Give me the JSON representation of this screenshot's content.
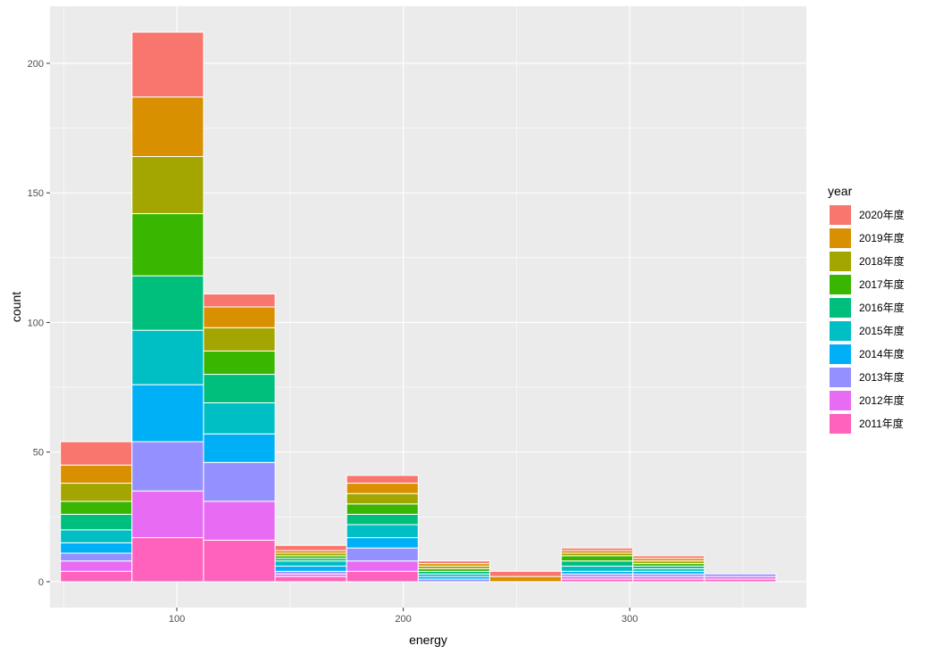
{
  "chart_data": {
    "type": "bar",
    "stacked": true,
    "xlabel": "energy",
    "ylabel": "count",
    "xlim": [
      44,
      378
    ],
    "ylim": [
      -10,
      222
    ],
    "xticks": [
      100,
      200,
      300
    ],
    "yticks": [
      0,
      50,
      100,
      150,
      200
    ],
    "x_tick_labels": [
      "100",
      "200",
      "300"
    ],
    "y_tick_labels": [
      "0",
      "50",
      "100",
      "150",
      "200"
    ],
    "grid": true,
    "legend": {
      "title": "year",
      "position": "right"
    },
    "bins": [
      {
        "x0": 48.6,
        "x1": 80.2
      },
      {
        "x0": 80.2,
        "x1": 111.8
      },
      {
        "x0": 111.8,
        "x1": 143.4
      },
      {
        "x0": 143.4,
        "x1": 175.0
      },
      {
        "x0": 175.0,
        "x1": 206.6
      },
      {
        "x0": 206.6,
        "x1": 238.2
      },
      {
        "x0": 238.2,
        "x1": 269.8
      },
      {
        "x0": 269.8,
        "x1": 301.4
      },
      {
        "x0": 301.4,
        "x1": 333.0
      },
      {
        "x0": 333.0,
        "x1": 364.6
      }
    ],
    "series": [
      {
        "name": "2020年度",
        "color": "#F8766D",
        "values": [
          9,
          25,
          5,
          2,
          3,
          1,
          2,
          1,
          1,
          0
        ]
      },
      {
        "name": "2019年度",
        "color": "#D89000",
        "values": [
          7,
          23,
          8,
          1,
          4,
          1,
          2,
          1,
          1,
          0
        ]
      },
      {
        "name": "2018年度",
        "color": "#A3A500",
        "values": [
          7,
          22,
          9,
          1,
          4,
          1,
          0,
          1,
          1,
          0
        ]
      },
      {
        "name": "2017年度",
        "color": "#39B600",
        "values": [
          5,
          24,
          9,
          1,
          4,
          1,
          0,
          2,
          1,
          0
        ]
      },
      {
        "name": "2016年度",
        "color": "#00BF7D",
        "values": [
          6,
          21,
          11,
          1,
          4,
          1,
          0,
          2,
          1,
          0
        ]
      },
      {
        "name": "2015年度",
        "color": "#00BFC4",
        "values": [
          5,
          21,
          12,
          2,
          5,
          1,
          0,
          2,
          1,
          0
        ]
      },
      {
        "name": "2014年度",
        "color": "#00B0F6",
        "values": [
          4,
          22,
          11,
          2,
          4,
          1,
          0,
          1,
          1,
          0
        ]
      },
      {
        "name": "2013年度",
        "color": "#9590FF",
        "values": [
          3,
          19,
          15,
          1,
          5,
          1,
          0,
          1,
          1,
          1
        ]
      },
      {
        "name": "2012年度",
        "color": "#E76BF3",
        "values": [
          4,
          18,
          15,
          1,
          4,
          0,
          0,
          1,
          1,
          1
        ]
      },
      {
        "name": "2011年度",
        "color": "#FF62BC",
        "values": [
          4,
          17,
          16,
          2,
          4,
          0,
          0,
          1,
          1,
          1
        ]
      }
    ]
  }
}
